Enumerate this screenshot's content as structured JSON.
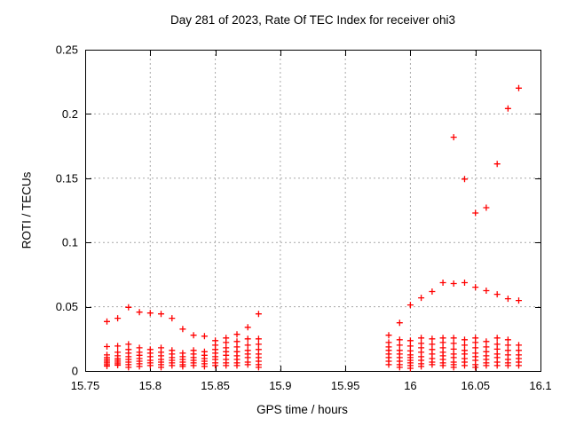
{
  "window": {
    "background": "#ffffff"
  },
  "chart_data": {
    "type": "scatter",
    "title": "Day 281 of 2023, Rate Of TEC Index for receiver ohi3",
    "xlabel": "GPS time / hours",
    "ylabel": "ROTI / TECUs",
    "xlim": [
      15.75,
      16.1
    ],
    "ylim": [
      0,
      0.25
    ],
    "x_ticks": [
      15.75,
      15.8,
      15.85,
      15.9,
      15.95,
      16.0,
      16.05,
      16.1
    ],
    "x_tick_labels": [
      "15.75",
      "15.8",
      "15.85",
      "15.9",
      "15.95",
      "16",
      "16.05",
      "16.1"
    ],
    "y_ticks": [
      0,
      0.05,
      0.1,
      0.15,
      0.2,
      0.25
    ],
    "y_tick_labels": [
      "0",
      "0.05",
      "0.1",
      "0.15",
      "0.2",
      "0.25"
    ],
    "grid": true,
    "grid_style": "dashed",
    "legend": "none",
    "marker": {
      "shape": "plus",
      "color": "#ff0000",
      "size": 7
    },
    "colors": {
      "background": "#ffffff",
      "border": "#000000",
      "grid": "#a8a8a8",
      "text": "#000000",
      "marker": "#ff0000"
    },
    "columns": [
      {
        "x": 15.7667,
        "y": [
          0.0385,
          0.019,
          0.0125,
          0.0104,
          0.009,
          0.0076,
          0.0063,
          0.0049,
          0.0038
        ]
      },
      {
        "x": 15.775,
        "y": [
          0.041,
          0.0194,
          0.0146,
          0.0118,
          0.0097,
          0.0083,
          0.0069,
          0.0056,
          0.0045
        ]
      },
      {
        "x": 15.7833,
        "y": [
          0.0495,
          0.0208,
          0.0167,
          0.0139,
          0.0111,
          0.009,
          0.0069,
          0.0049,
          0.0028
        ]
      },
      {
        "x": 15.7917,
        "y": [
          0.0458,
          0.018,
          0.0146,
          0.0122,
          0.0097,
          0.0076,
          0.0056,
          0.0035
        ]
      },
      {
        "x": 15.8,
        "y": [
          0.0451,
          0.0167,
          0.0139,
          0.0111,
          0.0083,
          0.0063,
          0.0042
        ]
      },
      {
        "x": 15.8083,
        "y": [
          0.0444,
          0.018,
          0.0146,
          0.0118,
          0.009,
          0.0069,
          0.0049,
          0.0028
        ]
      },
      {
        "x": 15.8167,
        "y": [
          0.041,
          0.016,
          0.0132,
          0.0104,
          0.0083,
          0.0063,
          0.0042
        ]
      },
      {
        "x": 15.825,
        "y": [
          0.0326,
          0.0139,
          0.0111,
          0.009,
          0.0069,
          0.0049,
          0.0035
        ]
      },
      {
        "x": 15.8333,
        "y": [
          0.0278,
          0.016,
          0.0132,
          0.0104,
          0.0083,
          0.0063,
          0.0042
        ]
      },
      {
        "x": 15.8417,
        "y": [
          0.0271,
          0.015,
          0.0122,
          0.0097,
          0.0076,
          0.0056,
          0.0035
        ]
      },
      {
        "x": 15.85,
        "y": [
          0.0236,
          0.0201,
          0.0167,
          0.0139,
          0.0111,
          0.009,
          0.0063,
          0.0042
        ]
      },
      {
        "x": 15.8583,
        "y": [
          0.0257,
          0.0222,
          0.018,
          0.015,
          0.0122,
          0.009,
          0.0063,
          0.0042
        ]
      },
      {
        "x": 15.8667,
        "y": [
          0.0285,
          0.0229,
          0.0187,
          0.015,
          0.0118,
          0.009,
          0.0063,
          0.0042
        ]
      },
      {
        "x": 15.875,
        "y": [
          0.034,
          0.025,
          0.0201,
          0.016,
          0.0132,
          0.0104,
          0.0069,
          0.0049
        ]
      },
      {
        "x": 15.8833,
        "y": [
          0.0444,
          0.025,
          0.0208,
          0.0167,
          0.0132,
          0.0104,
          0.0076,
          0.0049,
          0.0028
        ]
      },
      {
        "x": 15.9833,
        "y": [
          0.0278,
          0.0222,
          0.0187,
          0.016,
          0.0132,
          0.0104,
          0.0076,
          0.0049
        ]
      },
      {
        "x": 15.9917,
        "y": [
          0.0375,
          0.0243,
          0.0201,
          0.016,
          0.0132,
          0.0104,
          0.0076,
          0.0049,
          0.0028
        ]
      },
      {
        "x": 16.0,
        "y": [
          0.0514,
          0.0236,
          0.0194,
          0.0156,
          0.0125,
          0.0104,
          0.0083,
          0.0063,
          0.0042,
          0.0021
        ]
      },
      {
        "x": 16.0083,
        "y": [
          0.0569,
          0.0257,
          0.0215,
          0.018,
          0.0146,
          0.0111,
          0.0083,
          0.0056,
          0.0035
        ]
      },
      {
        "x": 16.0167,
        "y": [
          0.0618,
          0.025,
          0.0208,
          0.0167,
          0.0132,
          0.0097,
          0.0069,
          0.0049
        ]
      },
      {
        "x": 16.025,
        "y": [
          0.0687,
          0.0257,
          0.0222,
          0.018,
          0.0146,
          0.0118,
          0.009,
          0.0063,
          0.0042
        ]
      },
      {
        "x": 16.0333,
        "y": [
          0.1819,
          0.068,
          0.0257,
          0.0215,
          0.017,
          0.0132,
          0.0104,
          0.0069,
          0.0049,
          0.0028
        ]
      },
      {
        "x": 16.0417,
        "y": [
          0.1493,
          0.0687,
          0.0243,
          0.0201,
          0.016,
          0.0132,
          0.0097,
          0.0069,
          0.0042
        ]
      },
      {
        "x": 16.05,
        "y": [
          0.1229,
          0.0652,
          0.0257,
          0.0222,
          0.018,
          0.0139,
          0.0111,
          0.0083,
          0.0049,
          0.0028
        ]
      },
      {
        "x": 16.0583,
        "y": [
          0.1271,
          0.0625,
          0.0229,
          0.0187,
          0.015,
          0.0118,
          0.009,
          0.0063,
          0.0042
        ]
      },
      {
        "x": 16.0667,
        "y": [
          0.1611,
          0.0597,
          0.0257,
          0.0208,
          0.017,
          0.0132,
          0.0104,
          0.0069,
          0.0042
        ]
      },
      {
        "x": 16.075,
        "y": [
          0.2042,
          0.0562,
          0.0243,
          0.0201,
          0.016,
          0.0125,
          0.009,
          0.0063,
          0.0042
        ]
      },
      {
        "x": 16.0833,
        "y": [
          0.2201,
          0.0548,
          0.0201,
          0.016,
          0.0125,
          0.0097,
          0.0069,
          0.0042
        ]
      }
    ]
  }
}
